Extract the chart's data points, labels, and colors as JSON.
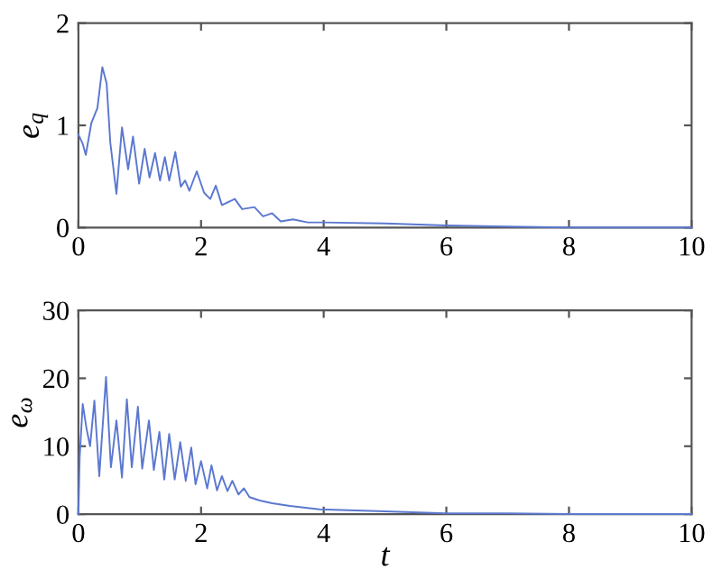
{
  "chart_data": [
    {
      "type": "line",
      "ylabel": "e$_{q}$",
      "xlim": [
        0,
        10
      ],
      "ylim": [
        0,
        2
      ],
      "xticks": [
        0,
        2,
        4,
        6,
        8,
        10
      ],
      "yticks": [
        0,
        1,
        2
      ],
      "grid": false,
      "legend": false,
      "series": [
        {
          "color": "#5b78d0",
          "x": [
            0,
            0.07,
            0.12,
            0.21,
            0.31,
            0.39,
            0.46,
            0.52,
            0.62,
            0.71,
            0.81,
            0.89,
            0.99,
            1.08,
            1.16,
            1.25,
            1.33,
            1.41,
            1.48,
            1.58,
            1.67,
            1.74,
            1.81,
            1.93,
            2.05,
            2.15,
            2.24,
            2.34,
            2.55,
            2.67,
            2.87,
            3.01,
            3.16,
            3.3,
            3.5,
            3.74,
            4,
            5,
            6,
            7,
            8,
            10
          ],
          "values": [
            0.91,
            0.82,
            0.71,
            1.02,
            1.17,
            1.57,
            1.41,
            0.83,
            0.33,
            0.98,
            0.57,
            0.89,
            0.43,
            0.77,
            0.49,
            0.73,
            0.46,
            0.69,
            0.46,
            0.74,
            0.4,
            0.46,
            0.36,
            0.55,
            0.34,
            0.28,
            0.41,
            0.22,
            0.28,
            0.18,
            0.2,
            0.11,
            0.14,
            0.06,
            0.08,
            0.05,
            0.05,
            0.04,
            0.02,
            0.01,
            0,
            0
          ]
        }
      ]
    },
    {
      "type": "line",
      "xlabel": "t",
      "ylabel": "e$_{ω}$",
      "xlim": [
        0,
        10
      ],
      "ylim": [
        0,
        30
      ],
      "xticks": [
        0,
        2,
        4,
        6,
        8,
        10
      ],
      "yticks": [
        0,
        10,
        20,
        30
      ],
      "grid": false,
      "legend": false,
      "series": [
        {
          "color": "#5b78d0",
          "x": [
            0,
            0.02,
            0.07,
            0.13,
            0.19,
            0.26,
            0.34,
            0.45,
            0.53,
            0.62,
            0.71,
            0.79,
            0.87,
            0.97,
            1.04,
            1.15,
            1.23,
            1.32,
            1.4,
            1.48,
            1.57,
            1.66,
            1.75,
            1.84,
            1.91,
            2.0,
            2.1,
            2.17,
            2.26,
            2.34,
            2.43,
            2.51,
            2.61,
            2.7,
            2.79,
            2.96,
            3.16,
            3.45,
            3.93,
            5,
            6,
            7,
            8,
            10
          ],
          "values": [
            0,
            8.3,
            16.2,
            12.7,
            10.0,
            16.7,
            5.6,
            20.2,
            6.9,
            13.8,
            5.4,
            16.9,
            6.9,
            15.8,
            6.7,
            13.8,
            6.5,
            12.1,
            5.1,
            11.8,
            5.1,
            10.6,
            4.9,
            9.8,
            4.4,
            7.8,
            3.8,
            7.2,
            3.5,
            5.6,
            3.4,
            4.9,
            2.9,
            3.8,
            2.5,
            2.0,
            1.6,
            1.2,
            0.7,
            0.4,
            0.1,
            0.1,
            0,
            0
          ]
        }
      ]
    }
  ]
}
